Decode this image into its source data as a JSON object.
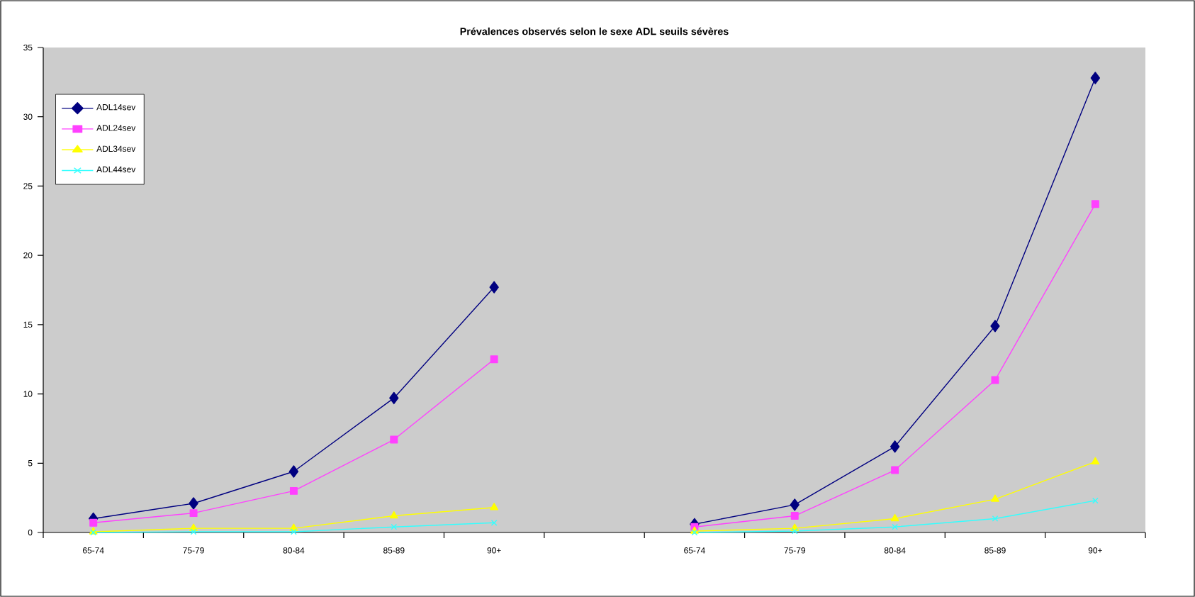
{
  "chart_data": {
    "type": "line",
    "title": "Prévalences observés selon le sexe ADL seuils sévères",
    "categories": [
      "65-74",
      "75-79",
      "80-84",
      "85-89",
      "90+",
      null,
      "65-74",
      "75-79",
      "80-84",
      "85-89",
      "90+"
    ],
    "series": [
      {
        "name": "ADL14sev",
        "color": "#000080",
        "marker": "diamond",
        "values": [
          1.0,
          2.1,
          4.4,
          9.7,
          17.7,
          null,
          0.6,
          2.0,
          6.2,
          14.9,
          32.8
        ]
      },
      {
        "name": "ADL24sev",
        "color": "#ff40ff",
        "marker": "square",
        "values": [
          0.7,
          1.4,
          3.0,
          6.7,
          12.5,
          null,
          0.4,
          1.2,
          4.5,
          11.0,
          23.7
        ]
      },
      {
        "name": "ADL34sev",
        "color": "#ffff00",
        "marker": "triangle",
        "values": [
          0.05,
          0.3,
          0.3,
          1.2,
          1.8,
          null,
          0.1,
          0.3,
          1.0,
          2.4,
          5.1
        ]
      },
      {
        "name": "ADL44sev",
        "color": "#33ffff",
        "marker": "cross",
        "values": [
          0.0,
          0.05,
          0.05,
          0.4,
          0.7,
          null,
          0.0,
          0.1,
          0.4,
          1.0,
          2.3
        ]
      }
    ],
    "ylim": [
      0,
      35
    ],
    "yticks": [
      0,
      5,
      10,
      15,
      20,
      25,
      30,
      35
    ],
    "grid": false,
    "legend": "top left"
  }
}
